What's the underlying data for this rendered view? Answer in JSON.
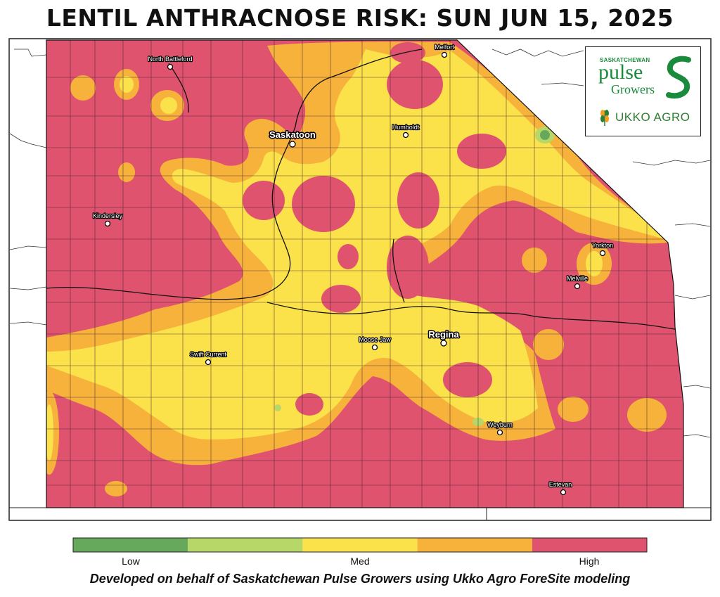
{
  "title": "LENTIL ANTHRACNOSE RISK: SUN JUN 15, 2025",
  "colors": {
    "high": "#e0536e",
    "med_high": "#f7b23c",
    "med": "#fbe14a",
    "low_med": "#b7d868",
    "low": "#66a85c",
    "background": "#ffffff"
  },
  "legend": {
    "colors": [
      "#66a85c",
      "#b7d868",
      "#fbe14a",
      "#f7b23c",
      "#e0536e"
    ],
    "labels": [
      "Low",
      "Med",
      "High"
    ]
  },
  "cities": [
    {
      "name": "North Battleford",
      "size": "small"
    },
    {
      "name": "Melfort",
      "size": "small"
    },
    {
      "name": "Saskatoon",
      "size": "big"
    },
    {
      "name": "Humboldt",
      "size": "small"
    },
    {
      "name": "Kindersley",
      "size": "small"
    },
    {
      "name": "Yorkton",
      "size": "small"
    },
    {
      "name": "Melville",
      "size": "small"
    },
    {
      "name": "Regina",
      "size": "big"
    },
    {
      "name": "Moose Jaw",
      "size": "small"
    },
    {
      "name": "Swift Current",
      "size": "small"
    },
    {
      "name": "Weyburn",
      "size": "small"
    },
    {
      "name": "Estevan",
      "size": "small"
    }
  ],
  "logo": {
    "org_small": "SASKATCHEWAN",
    "org_name": "pulse",
    "org_sub": "Growers",
    "partner": "UKKO AGRO"
  },
  "footer": "Developed on behalf of Saskatchewan Pulse Growers using Ukko Agro ForeSite modeling"
}
